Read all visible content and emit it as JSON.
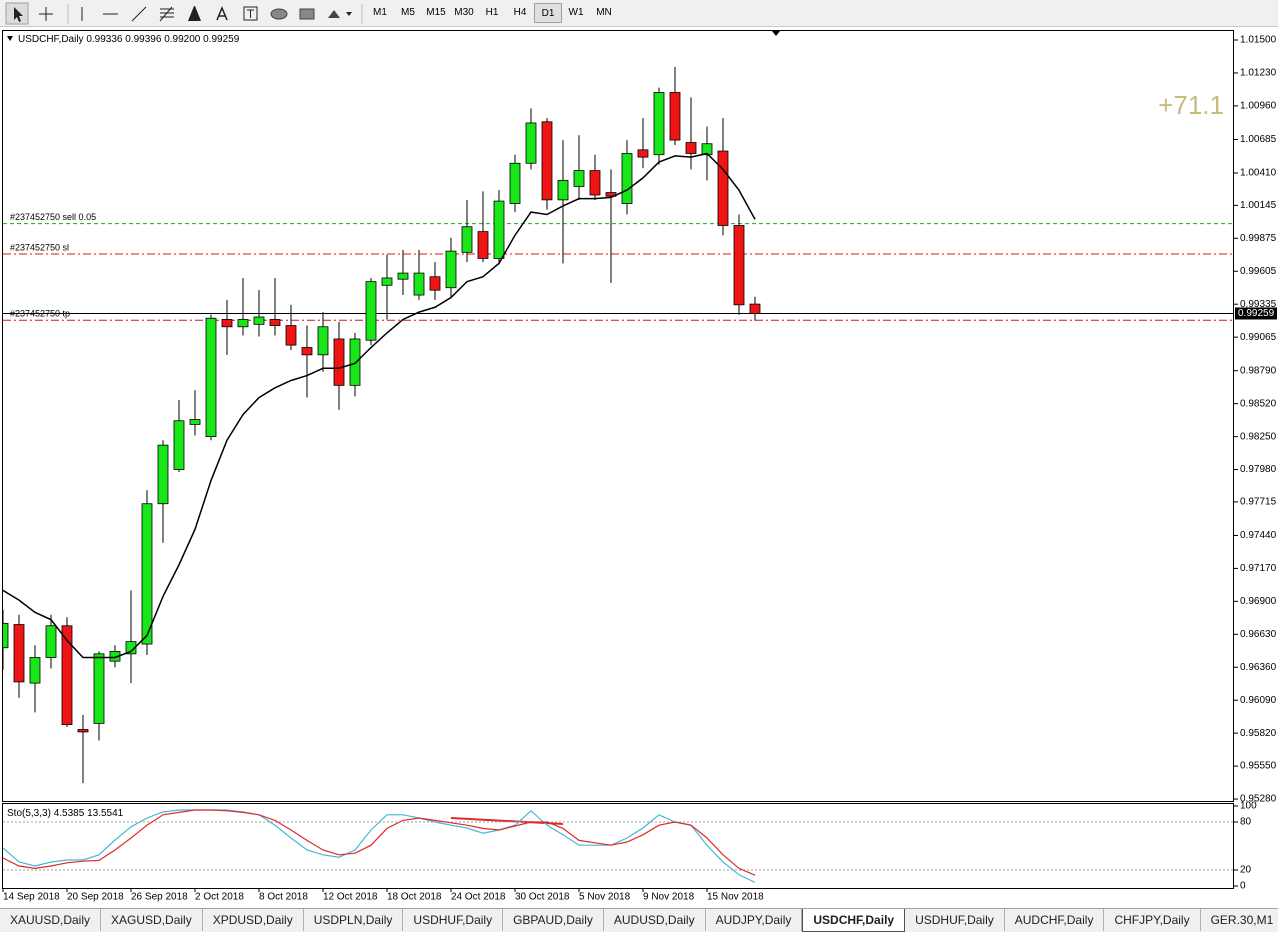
{
  "toolbar": {
    "timeframes": [
      "M1",
      "M5",
      "M15",
      "M30",
      "H1",
      "H4",
      "D1",
      "W1",
      "MN"
    ],
    "active": "D1"
  },
  "tabs": {
    "items": [
      "XAUUSD,Daily",
      "XAGUSD,Daily",
      "XPDUSD,Daily",
      "USDPLN,Daily",
      "USDHUF,Daily",
      "GBPAUD,Daily",
      "AUDUSD,Daily",
      "AUDJPY,Daily",
      "USDCHF,Daily",
      "USDHUF,Daily",
      "AUDCHF,Daily",
      "CHFJPY,Daily",
      "GER.30,M1"
    ],
    "active": "USDCHF,Daily"
  },
  "chart_data": [
    {
      "type": "candlestick",
      "title": "USDCHF,Daily",
      "header_values": [
        "0.99336",
        "0.99396",
        "0.99200",
        "0.99259"
      ],
      "profit": "+71.1",
      "profit_color": "#c8bb7c",
      "categories": [
        "14 Sep 2018",
        null,
        null,
        null,
        "20 Sep 2018",
        null,
        null,
        null,
        "26 Sep 2018",
        null,
        null,
        null,
        "2 Oct 2018",
        null,
        null,
        null,
        "8 Oct 2018",
        null,
        null,
        null,
        "12 Oct 2018",
        null,
        null,
        null,
        "18 Oct 2018",
        null,
        null,
        null,
        "24 Oct 2018",
        null,
        null,
        null,
        "30 Oct 2018",
        null,
        null,
        null,
        "5 Nov 2018",
        null,
        null,
        null,
        "9 Nov 2018",
        null,
        null,
        null,
        "15 Nov 2018",
        null,
        null,
        null
      ],
      "open": [
        0.9652,
        0.9671,
        0.9623,
        0.9644,
        0.967,
        0.9585,
        0.959,
        0.9641,
        0.9647,
        0.9655,
        0.977,
        0.9798,
        0.9835,
        0.9825,
        0.9921,
        0.9915,
        0.9917,
        0.9921,
        0.9916,
        0.9898,
        0.9892,
        0.9905,
        0.9867,
        0.9904,
        0.9949,
        0.9954,
        0.9941,
        0.9956,
        0.9947,
        0.9976,
        0.9993,
        0.9971,
        1.0016,
        1.0049,
        1.0083,
        1.0019,
        1.003,
        1.0043,
        1.0025,
        1.0016,
        1.006,
        1.0056,
        1.0107,
        1.0066,
        1.0056,
        1.0059,
        0.9998,
        0.99336
      ],
      "high": [
        0.9683,
        0.9679,
        0.9654,
        0.9679,
        0.9677,
        0.9597,
        0.9649,
        0.9654,
        0.9699,
        0.9781,
        0.9822,
        0.9855,
        0.9863,
        0.9925,
        0.9937,
        0.9955,
        0.9945,
        0.9955,
        0.9933,
        0.9916,
        0.9927,
        0.9919,
        0.991,
        0.9955,
        0.9974,
        0.9978,
        0.9978,
        0.9968,
        0.9988,
        1.0019,
        1.0026,
        1.0027,
        1.0056,
        1.0094,
        1.0086,
        1.0068,
        1.0072,
        1.0056,
        1.0044,
        1.0068,
        1.0086,
        1.0111,
        1.0128,
        1.0103,
        1.0079,
        1.0086,
        1.0007,
        0.99396
      ],
      "low": [
        0.9634,
        0.9611,
        0.9599,
        0.9635,
        0.9587,
        0.9541,
        0.9576,
        0.9636,
        0.9623,
        0.9646,
        0.9738,
        0.9796,
        0.9826,
        0.9822,
        0.9892,
        0.9908,
        0.9907,
        0.9908,
        0.9896,
        0.9857,
        0.9878,
        0.9847,
        0.9858,
        0.99,
        0.9921,
        0.9941,
        0.9937,
        0.9937,
        0.9939,
        0.9968,
        0.9968,
        0.9966,
        1.0009,
        1.0044,
        1.0011,
        0.9967,
        1.0019,
        1.0019,
        0.9951,
        1.0007,
        1.0045,
        1.0048,
        1.0064,
        1.0044,
        1.0035,
        0.999,
        0.9925,
        0.992
      ],
      "close": [
        0.9672,
        0.9624,
        0.9644,
        0.967,
        0.9589,
        0.9583,
        0.9647,
        0.9649,
        0.9657,
        0.977,
        0.9818,
        0.9838,
        0.9839,
        0.9922,
        0.9915,
        0.9921,
        0.9923,
        0.9916,
        0.99,
        0.9892,
        0.9915,
        0.9867,
        0.9905,
        0.9952,
        0.9955,
        0.9959,
        0.9959,
        0.9945,
        0.9977,
        0.9997,
        0.9971,
        1.0018,
        1.0049,
        1.0082,
        1.0019,
        1.0035,
        1.0043,
        1.0023,
        1.0022,
        1.0057,
        1.0054,
        1.0107,
        1.0068,
        1.0057,
        1.0065,
        0.9998,
        0.9933,
        0.99259
      ],
      "up_color": "#19e619",
      "down_color": "#f01414",
      "overlay": {
        "color": "#000000",
        "values": [
          0.9699,
          0.9691,
          0.9681,
          0.9675,
          0.9658,
          0.9644,
          0.9644,
          0.9644,
          0.9649,
          0.9662,
          0.9694,
          0.972,
          0.9749,
          0.9789,
          0.9822,
          0.9843,
          0.9857,
          0.9865,
          0.9871,
          0.9875,
          0.9881,
          0.9881,
          0.9885,
          0.9898,
          0.991,
          0.9921,
          0.9927,
          0.9931,
          0.9939,
          0.9952,
          0.9956,
          0.9967,
          0.999,
          1.0009,
          1.0007,
          1.0014,
          1.002,
          1.002,
          1.0021,
          1.0027,
          1.0037,
          1.005,
          1.0055,
          1.0054,
          1.0057,
          1.0044,
          1.0027,
          1.0003
        ]
      },
      "orders": [
        {
          "label": "#237452750 sell 0.05",
          "value": 0.99995,
          "color": "#1fa81f",
          "style": "dash"
        },
        {
          "label": "#237452750 sl",
          "value": 0.99746,
          "color": "#d01818",
          "style": "dashdot"
        },
        {
          "label": "#237452750 tp",
          "value": 0.99204,
          "color": "#d01818",
          "style": "dashdot"
        }
      ],
      "ylim": [
        0.95264,
        1.01582
      ],
      "yticks": [
        {
          "value": 1.015,
          "label": "1.01500"
        },
        {
          "value": 1.0123,
          "label": "1.01230"
        },
        {
          "value": 1.0096,
          "label": "1.00960"
        },
        {
          "value": 1.00685,
          "label": "1.00685"
        },
        {
          "value": 1.0041,
          "label": "1.00410"
        },
        {
          "value": 1.00145,
          "label": "1.00145"
        },
        {
          "value": 0.99875,
          "label": "0.99875"
        },
        {
          "value": 0.99605,
          "label": "0.99605"
        },
        {
          "value": 0.99335,
          "label": "0.99335"
        },
        {
          "value": 0.99065,
          "label": "0.99065"
        },
        {
          "value": 0.9879,
          "label": "0.98790"
        },
        {
          "value": 0.9852,
          "label": "0.98520"
        },
        {
          "value": 0.9825,
          "label": "0.98250"
        },
        {
          "value": 0.9798,
          "label": "0.97980"
        },
        {
          "value": 0.97715,
          "label": "0.97715"
        },
        {
          "value": 0.9744,
          "label": "0.97440"
        },
        {
          "value": 0.9717,
          "label": "0.97170"
        },
        {
          "value": 0.969,
          "label": "0.96900"
        },
        {
          "value": 0.9663,
          "label": "0.96630"
        },
        {
          "value": 0.9636,
          "label": "0.96360"
        },
        {
          "value": 0.9609,
          "label": "0.96090"
        },
        {
          "value": 0.9582,
          "label": "0.95820"
        },
        {
          "value": 0.9555,
          "label": "0.95550"
        },
        {
          "value": 0.9528,
          "label": "0.95280"
        }
      ],
      "grid": false
    },
    {
      "type": "line",
      "title": "Sto(5,3,3)",
      "series": [
        {
          "color": "#45b8d8",
          "values": [
            47.5,
            30,
            25,
            30,
            32.5,
            32.5,
            39,
            57.5,
            74,
            85,
            92.5,
            95,
            95,
            95,
            95,
            92.5,
            89,
            76,
            60,
            45,
            39,
            36,
            45,
            70,
            89,
            89,
            85,
            80,
            76,
            72.5,
            66,
            70,
            76,
            94,
            76,
            64,
            51,
            51,
            51,
            60,
            72.5,
            89,
            80,
            76,
            51,
            30,
            14,
            4.5385
          ]
        },
        {
          "color": "#e02a2a",
          "values": [
            35,
            25,
            22,
            25,
            29,
            31,
            32,
            45,
            60,
            76,
            89,
            92,
            95,
            95,
            94,
            92,
            89,
            82,
            70,
            57,
            45,
            39,
            41,
            51,
            72,
            82,
            85,
            82,
            79,
            76,
            72,
            70,
            75,
            80,
            80,
            72,
            57,
            54,
            51,
            55,
            64,
            76,
            80,
            76,
            60,
            39,
            22,
            13.5541
          ]
        }
      ],
      "ylim": [
        0,
        100
      ],
      "yticks": [
        100,
        80,
        20,
        0
      ],
      "levels": [
        80,
        20
      ],
      "grid": false
    }
  ]
}
